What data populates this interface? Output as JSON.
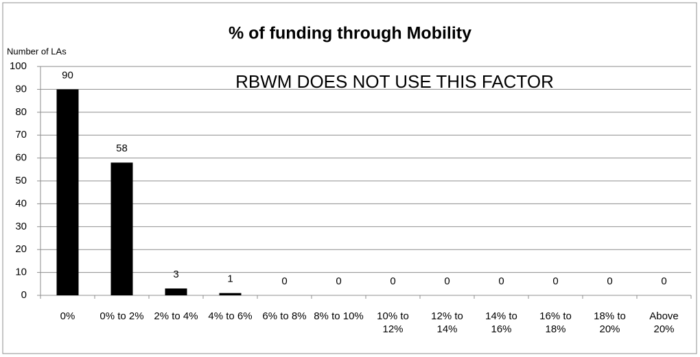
{
  "chart_data": {
    "type": "bar",
    "title": "% of funding through Mobility",
    "y_label": "Number of LAs",
    "annotation": "RBWM DOES NOT USE THIS FACTOR",
    "categories": [
      "0%",
      "0% to 2%",
      "2% to 4%",
      "4% to 6%",
      "6% to 8%",
      "8% to 10%",
      "10% to 12%",
      "12% to 14%",
      "14% to 16%",
      "16% to 18%",
      "18% to 20%",
      "Above 20%"
    ],
    "values": [
      90,
      58,
      3,
      1,
      0,
      0,
      0,
      0,
      0,
      0,
      0,
      0
    ],
    "color": "#000000",
    "ylim": [
      0,
      100
    ],
    "yticks": [
      0,
      10,
      20,
      30,
      40,
      50,
      60,
      70,
      80,
      90,
      100
    ],
    "grid": true
  }
}
